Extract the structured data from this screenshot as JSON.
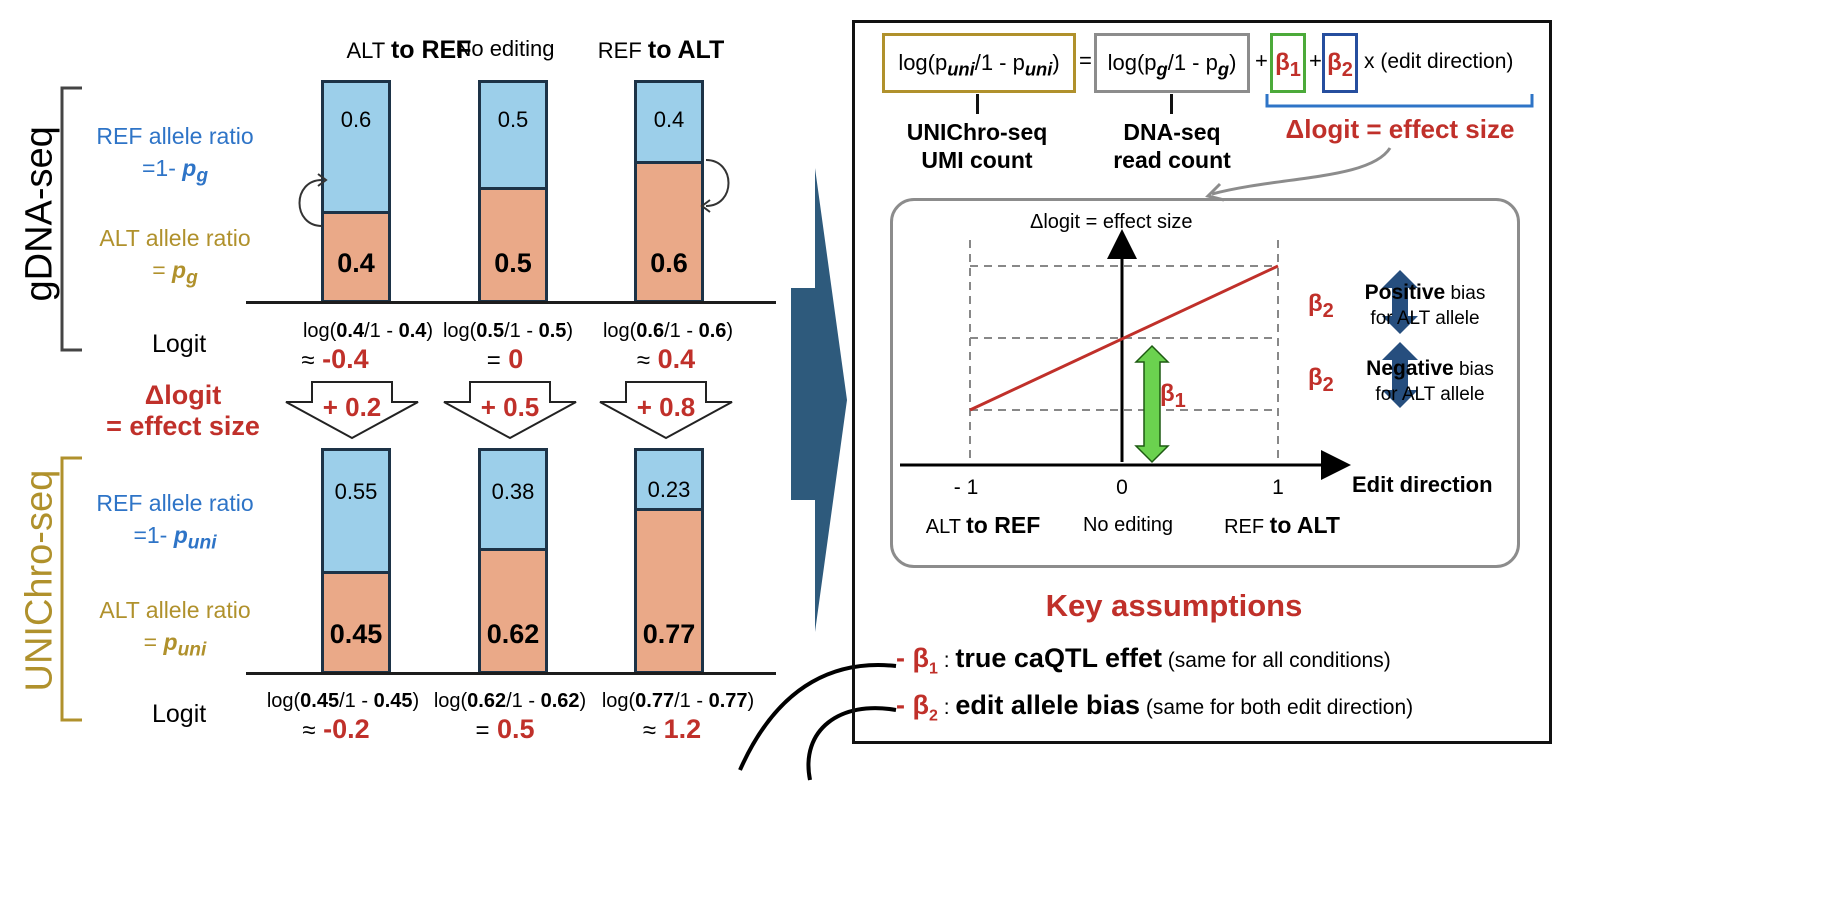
{
  "conditions": [
    {
      "pre": "ALT",
      "bold": "to REF",
      "ref_g": "0.6",
      "alt_g": "0.4",
      "ref_u": "0.55",
      "alt_u": "0.45",
      "logit_g_a": "0.4",
      "logit_g_b": "0.4",
      "logit_g_val": "-0.4",
      "logit_g_prefix": "≈",
      "delta": "+ 0.2",
      "logit_u_a": "0.45",
      "logit_u_b": "0.45",
      "logit_u_val": "-0.2",
      "logit_u_prefix": "≈"
    },
    {
      "pre": "No editing",
      "bold": "",
      "ref_g": "0.5",
      "alt_g": "0.5",
      "ref_u": "0.38",
      "alt_u": "0.62",
      "logit_g_a": "0.5",
      "logit_g_b": "0.5",
      "logit_g_val": "0",
      "logit_g_prefix": "=",
      "delta": "+ 0.5",
      "logit_u_a": "0.62",
      "logit_u_b": "0.62",
      "logit_u_val": "0.5",
      "logit_u_prefix": "="
    },
    {
      "pre": "REF",
      "bold": "to ALT",
      "ref_g": "0.4",
      "alt_g": "0.6",
      "ref_u": "0.23",
      "alt_u": "0.77",
      "logit_g_a": "0.6",
      "logit_g_b": "0.6",
      "logit_g_val": "0.4",
      "logit_g_prefix": "≈",
      "delta": "+ 0.8",
      "logit_u_a": "0.77",
      "logit_u_b": "0.77",
      "logit_u_val": "1.2",
      "logit_u_prefix": "≈"
    }
  ],
  "left": {
    "gdna_label": "gDNA-seq",
    "unichro_label": "UNIChro-seq",
    "ref_ratio": "REF allele ratio",
    "alt_ratio": "ALT allele ratio",
    "ref_eq_prefix": "=1-",
    "alt_eq_prefix": "=",
    "p_symbol": "p",
    "sub_g": "g",
    "sub_uni": "uni",
    "logit": "Logit",
    "delta_logit_1": "Δlogit",
    "delta_logit_2": "= effect size",
    "log_fn": "log(",
    "log_mid": "/1 - ",
    "log_close": ")"
  },
  "equation": {
    "lhs": "log(p",
    "lhs_sub": "uni",
    "lhs_mid": "/1 - p",
    "lhs_end": ")",
    "eq": "=",
    "rhs": "log(p",
    "rhs_sub": "g",
    "rhs_mid": "/1 - p",
    "rhs_end": ")",
    "plus": "+",
    "beta": "β",
    "sub1": "1",
    "sub2": "2",
    "tail": "x (edit direction)",
    "uni_label_1": "UNIChro-seq",
    "uni_label_2": "UMI count",
    "dna_label_1": "DNA-seq",
    "dna_label_2": "read count",
    "effect_label": "Δlogit = effect size"
  },
  "plot": {
    "ylabel": "Δlogit = effect size",
    "xlabel": "Edit direction",
    "xticks": [
      "- 1",
      "0",
      "1"
    ],
    "xcat": [
      {
        "pre": "ALT",
        "bold": "to REF"
      },
      {
        "pre": "No editing",
        "bold": ""
      },
      {
        "pre": "REF",
        "bold": "to ALT"
      }
    ],
    "pos_bold": "Positive",
    "pos_rest": " bias",
    "pos_line2": "for ALT allele",
    "neg_bold": "Negative",
    "neg_rest": " bias",
    "neg_line2": "for ALT allele",
    "beta1": "β",
    "beta1_sub": "1",
    "beta2": "β",
    "beta2_sub": "2"
  },
  "assumptions": {
    "title": "Key assumptions",
    "items": [
      {
        "dash": "- β",
        "sub": "1",
        "colon": " : ",
        "bold": "true caQTL effet",
        "rest": " (same for all conditions)"
      },
      {
        "dash": "- β",
        "sub": "2",
        "colon": " : ",
        "bold": "edit allele bias",
        "rest": " (same for both edit direction)"
      }
    ]
  },
  "colors": {
    "ref_fill": "#9ccfea",
    "alt_fill": "#eaa988",
    "bar_border": "#1d3347",
    "red": "#c0302a",
    "blue": "#2e74c7",
    "gold": "#b0912c",
    "green": "#6bd24f",
    "navy": "#264e7e",
    "big_arrow": "#2e5a7c"
  }
}
